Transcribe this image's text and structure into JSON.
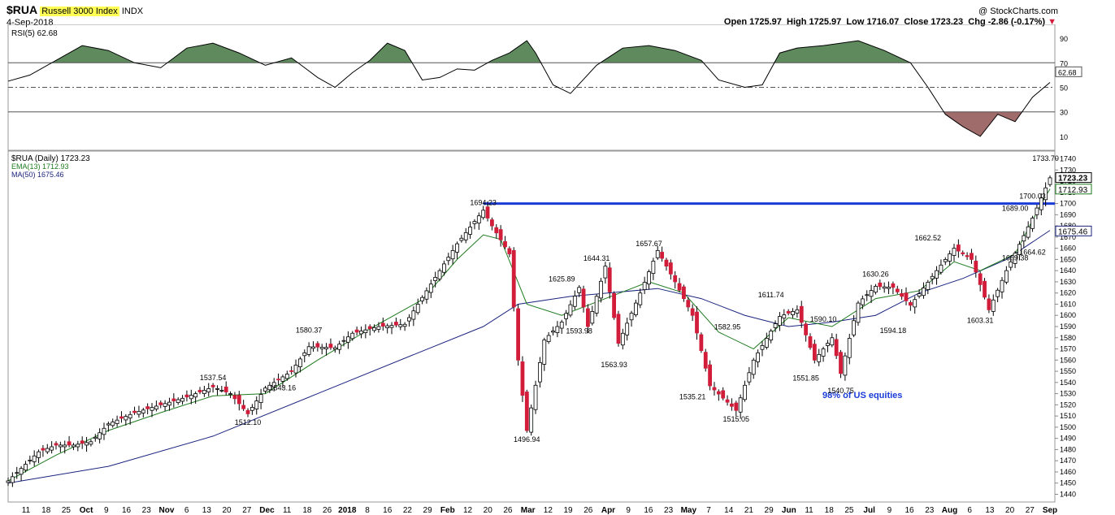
{
  "header": {
    "symbol": "$RUA",
    "name": "Russell 3000 Index",
    "exchange": "INDX",
    "date": "4-Sep-2018",
    "copyright": "@ StockCharts.com",
    "quote": {
      "open_label": "Open",
      "open": "1725.97",
      "high_label": "High",
      "high": "1725.97",
      "low_label": "Low",
      "low": "1716.07",
      "close_label": "Close",
      "close": "1723.23",
      "chg_label": "Chg",
      "chg": "-2.86 (-0.17%)"
    }
  },
  "colors": {
    "up_candle": "#ffffff",
    "down_candle": "#d11c3a",
    "ema": "#1e7b1e",
    "ma": "#1a237e",
    "resistance": "#1a3bd6",
    "rsi_overbought_fill": "#5e8a5e",
    "rsi_oversold_fill": "#a06b6b",
    "highlight": "#ffff55"
  },
  "chart_data": [
    {
      "type": "line",
      "panel": "indicator",
      "title": "RSI(5) 62.68",
      "y_ticks": [
        "10",
        "30",
        "50",
        "70",
        "90"
      ],
      "ylim": [
        0,
        100
      ],
      "levels": [
        30,
        50,
        70
      ],
      "last_value_label": "62.68",
      "x_range": [
        1,
        240
      ],
      "series": [
        {
          "name": "RSI(5)",
          "points": [
            [
              1,
              55
            ],
            [
              6,
              60
            ],
            [
              12,
              72
            ],
            [
              18,
              84
            ],
            [
              24,
              80
            ],
            [
              30,
              70
            ],
            [
              36,
              66
            ],
            [
              42,
              82
            ],
            [
              48,
              86
            ],
            [
              54,
              78
            ],
            [
              60,
              68
            ],
            [
              66,
              74
            ],
            [
              72,
              58
            ],
            [
              76,
              50
            ],
            [
              80,
              62
            ],
            [
              84,
              72
            ],
            [
              88,
              86
            ],
            [
              92,
              80
            ],
            [
              96,
              56
            ],
            [
              100,
              58
            ],
            [
              104,
              65
            ],
            [
              108,
              64
            ],
            [
              112,
              72
            ],
            [
              116,
              78
            ],
            [
              120,
              88
            ],
            [
              122,
              78
            ],
            [
              126,
              52
            ],
            [
              130,
              45
            ],
            [
              136,
              68
            ],
            [
              142,
              82
            ],
            [
              148,
              84
            ],
            [
              154,
              80
            ],
            [
              160,
              72
            ],
            [
              164,
              56
            ],
            [
              170,
              50
            ],
            [
              174,
              52
            ],
            [
              178,
              78
            ],
            [
              182,
              82
            ],
            [
              188,
              84
            ],
            [
              196,
              88
            ],
            [
              202,
              80
            ],
            [
              208,
              70
            ],
            [
              212,
              50
            ],
            [
              216,
              28
            ],
            [
              220,
              18
            ],
            [
              224,
              10
            ],
            [
              228,
              28
            ],
            [
              232,
              22
            ],
            [
              236,
              42
            ],
            [
              240,
              54
            ]
          ]
        }
      ]
    },
    {
      "type": "line",
      "panel": "price",
      "title": "$RUA (Daily) 1723.23",
      "x_tick_labels": [
        "11",
        "18",
        "25",
        "Oct",
        "9",
        "16",
        "23",
        "Nov",
        "6",
        "13",
        "20",
        "27",
        "Dec",
        "11",
        "18",
        "26",
        "2018",
        "8",
        "16",
        "22",
        "29",
        "Feb",
        "12",
        "20",
        "26",
        "Mar",
        "12",
        "19",
        "26",
        "Apr",
        "9",
        "16",
        "23",
        "May",
        "7",
        "14",
        "21",
        "29",
        "Jun",
        "11",
        "18",
        "25",
        "Jul",
        "9",
        "16",
        "23",
        "Aug",
        "6",
        "13",
        "20",
        "27",
        "Sep"
      ],
      "y_ticks": [
        1440,
        1450,
        1460,
        1470,
        1480,
        1490,
        1500,
        1510,
        1520,
        1530,
        1540,
        1550,
        1560,
        1570,
        1580,
        1590,
        1600,
        1610,
        1620,
        1630,
        1640,
        1650,
        1660,
        1670,
        1680,
        1690,
        1700,
        1710,
        1720,
        1730,
        1740
      ],
      "ylim": [
        1436,
        1744
      ],
      "x_range": [
        1,
        240
      ],
      "resistance_level": 1700,
      "last_value_labels": {
        "close": "1723.23",
        "ema": "1712.93",
        "ma": "1675.46"
      },
      "series": [
        {
          "name": "$RUA (Daily)",
          "points": [
            [
              1,
              1452
            ],
            [
              8,
              1478
            ],
            [
              12,
              1484
            ],
            [
              16,
              1484
            ],
            [
              20,
              1487
            ],
            [
              24,
              1503
            ],
            [
              30,
              1513
            ],
            [
              36,
              1520
            ],
            [
              42,
              1527
            ],
            [
              48,
              1536
            ],
            [
              52,
              1530
            ],
            [
              56,
              1512
            ],
            [
              60,
              1535
            ],
            [
              66,
              1550
            ],
            [
              70,
              1572
            ],
            [
              76,
              1571
            ],
            [
              80,
              1584
            ],
            [
              86,
              1590
            ],
            [
              92,
              1592
            ],
            [
              96,
              1616
            ],
            [
              100,
              1640
            ],
            [
              104,
              1664
            ],
            [
              108,
              1684
            ],
            [
              110,
              1694
            ],
            [
              112,
              1680
            ],
            [
              116,
              1655
            ],
            [
              118,
              1560
            ],
            [
              120,
              1497
            ],
            [
              124,
              1578
            ],
            [
              128,
              1594
            ],
            [
              132,
              1625
            ],
            [
              134,
              1590
            ],
            [
              138,
              1644
            ],
            [
              141,
              1575
            ],
            [
              146,
              1620
            ],
            [
              150,
              1658
            ],
            [
              154,
              1630
            ],
            [
              158,
              1600
            ],
            [
              162,
              1537
            ],
            [
              168,
              1515
            ],
            [
              172,
              1560
            ],
            [
              178,
              1599
            ],
            [
              182,
              1605
            ],
            [
              186,
              1560
            ],
            [
              190,
              1580
            ],
            [
              192,
              1548
            ],
            [
              196,
              1611
            ],
            [
              200,
              1626
            ],
            [
              204,
              1625
            ],
            [
              208,
              1609
            ],
            [
              214,
              1640
            ],
            [
              218,
              1660
            ],
            [
              222,
              1650
            ],
            [
              226,
              1605
            ],
            [
              230,
              1640
            ],
            [
              236,
              1687
            ],
            [
              240,
              1723
            ]
          ]
        },
        {
          "name": "EMA(13)",
          "value_label": "1712.93",
          "points": [
            [
              1,
              1452
            ],
            [
              12,
              1475
            ],
            [
              24,
              1497
            ],
            [
              36,
              1513
            ],
            [
              48,
              1528
            ],
            [
              60,
              1530
            ],
            [
              72,
              1560
            ],
            [
              84,
              1588
            ],
            [
              96,
              1614
            ],
            [
              104,
              1650
            ],
            [
              110,
              1672
            ],
            [
              114,
              1668
            ],
            [
              120,
              1610
            ],
            [
              128,
              1600
            ],
            [
              140,
              1618
            ],
            [
              148,
              1630
            ],
            [
              156,
              1620
            ],
            [
              164,
              1585
            ],
            [
              172,
              1570
            ],
            [
              180,
              1598
            ],
            [
              190,
              1590
            ],
            [
              200,
              1615
            ],
            [
              210,
              1622
            ],
            [
              218,
              1648
            ],
            [
              224,
              1640
            ],
            [
              232,
              1655
            ],
            [
              238,
              1700
            ],
            [
              240,
              1713
            ]
          ]
        },
        {
          "name": "MA(50)",
          "value_label": "1675.46",
          "points": [
            [
              1,
              1450
            ],
            [
              24,
              1465
            ],
            [
              48,
              1492
            ],
            [
              72,
              1530
            ],
            [
              96,
              1568
            ],
            [
              110,
              1590
            ],
            [
              118,
              1610
            ],
            [
              130,
              1617
            ],
            [
              150,
              1624
            ],
            [
              160,
              1615
            ],
            [
              170,
              1600
            ],
            [
              180,
              1590
            ],
            [
              190,
              1594
            ],
            [
              200,
              1600
            ],
            [
              210,
              1620
            ],
            [
              220,
              1633
            ],
            [
              230,
              1650
            ],
            [
              240,
              1676
            ]
          ]
        }
      ],
      "annotations": [
        {
          "label": "1537.54",
          "x": 48,
          "value": 1537.54,
          "pos": "above"
        },
        {
          "label": "1512.10",
          "x": 56,
          "value": 1512.1,
          "pos": "below"
        },
        {
          "label": "1543.16",
          "x": 64,
          "value": 1543.16,
          "pos": "below"
        },
        {
          "label": "1580.37",
          "x": 70,
          "value": 1580.37,
          "pos": "above"
        },
        {
          "label": "1694.23",
          "x": 110,
          "value": 1694.23,
          "pos": "above"
        },
        {
          "label": "1496.94",
          "x": 120,
          "value": 1496.94,
          "pos": "below"
        },
        {
          "label": "1625.89",
          "x": 128,
          "value": 1625.89,
          "pos": "above"
        },
        {
          "label": "1593.98",
          "x": 132,
          "value": 1593.98,
          "pos": "below"
        },
        {
          "label": "1644.31",
          "x": 136,
          "value": 1644.31,
          "pos": "above"
        },
        {
          "label": "1563.93",
          "x": 140,
          "value": 1563.93,
          "pos": "below"
        },
        {
          "label": "1657.67",
          "x": 148,
          "value": 1657.67,
          "pos": "above"
        },
        {
          "label": "1535.21",
          "x": 158,
          "value": 1535.21,
          "pos": "below"
        },
        {
          "label": "1582.95",
          "x": 166,
          "value": 1582.95,
          "pos": "above"
        },
        {
          "label": "1515.05",
          "x": 168,
          "value": 1515.05,
          "pos": "below"
        },
        {
          "label": "1611.74",
          "x": 176,
          "value": 1611.74,
          "pos": "above"
        },
        {
          "label": "1551.85",
          "x": 184,
          "value": 1551.85,
          "pos": "below"
        },
        {
          "label": "1590.10",
          "x": 188,
          "value": 1590.1,
          "pos": "above"
        },
        {
          "label": "1540.75",
          "x": 192,
          "value": 1540.75,
          "pos": "below"
        },
        {
          "label": "1630.26",
          "x": 200,
          "value": 1630.26,
          "pos": "above"
        },
        {
          "label": "1594.18",
          "x": 204,
          "value": 1594.18,
          "pos": "below"
        },
        {
          "label": "1662.52",
          "x": 212,
          "value": 1662.52,
          "pos": "above"
        },
        {
          "label": "1603.31",
          "x": 224,
          "value": 1603.31,
          "pos": "below"
        },
        {
          "label": "1659.38",
          "x": 232,
          "value": 1659.38,
          "pos": "below"
        },
        {
          "label": "1689.00",
          "x": 232,
          "value": 1689.0,
          "pos": "above"
        },
        {
          "label": "1700.03",
          "x": 236,
          "value": 1700.03,
          "pos": "above"
        },
        {
          "label": "1664.62",
          "x": 236,
          "value": 1664.62,
          "pos": "below"
        },
        {
          "label": "1733.70",
          "x": 239,
          "value": 1733.7,
          "pos": "above"
        }
      ],
      "note": "98% of US equities"
    }
  ]
}
